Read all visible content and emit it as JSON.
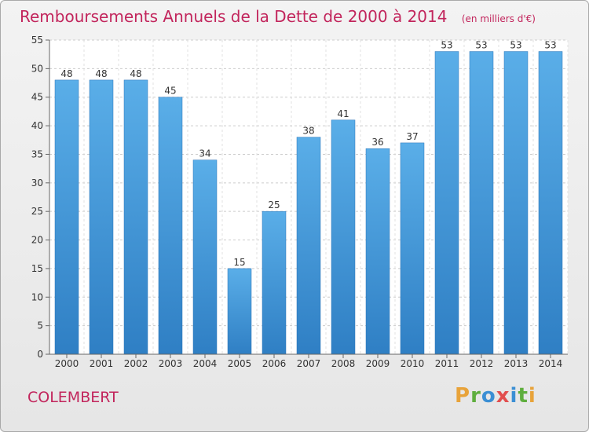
{
  "chart_data": {
    "type": "bar",
    "title": "Remboursements Annuels de la Dette de 2000 à 2014",
    "subtitle": "(en milliers d'€)",
    "categories": [
      "2000",
      "2001",
      "2002",
      "2003",
      "2004",
      "2005",
      "2006",
      "2007",
      "2008",
      "2009",
      "2010",
      "2011",
      "2012",
      "2013",
      "2014"
    ],
    "values": [
      48,
      48,
      48,
      45,
      34,
      15,
      25,
      38,
      41,
      36,
      37,
      53,
      53,
      53,
      53
    ],
    "ylim": [
      0,
      55
    ],
    "yticks": [
      0,
      5,
      10,
      15,
      20,
      25,
      30,
      35,
      40,
      45,
      50,
      55
    ],
    "grid": true,
    "bar_color": "#3d8fd6"
  },
  "footer": {
    "commune": "COLEMBERT",
    "logo": [
      "P",
      "r",
      "o",
      "x",
      "i",
      "t",
      "i"
    ],
    "logo_colors": [
      "#e8a33a",
      "#5fae3e",
      "#3b8fd4",
      "#e24f4f",
      "#3b8fd4",
      "#5fae3e",
      "#e8a33a"
    ]
  }
}
